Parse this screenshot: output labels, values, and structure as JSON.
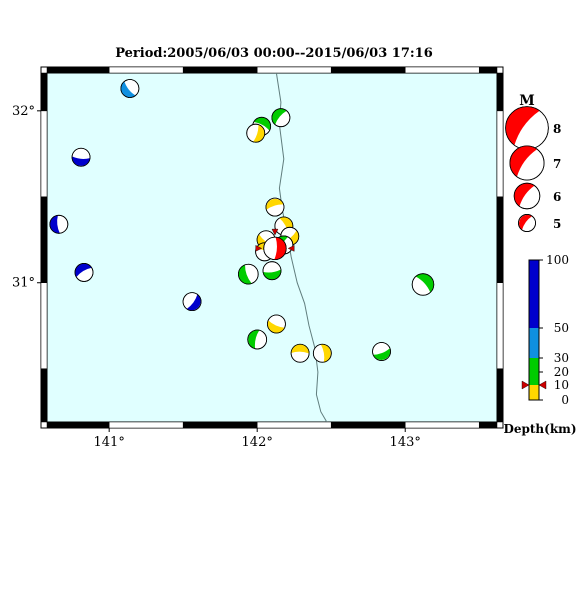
{
  "title": "Period:2005/06/03 00:00--2015/06/03 17:16",
  "map": {
    "lon_range": [
      140.58,
      143.62
    ],
    "lat_range": [
      30.19,
      32.22
    ],
    "background_color": "#e0ffff",
    "lon_ticks": [
      {
        "value": 141,
        "label": "141°"
      },
      {
        "value": 142,
        "label": "142°"
      },
      {
        "value": 143,
        "label": "143°"
      }
    ],
    "lat_ticks": [
      {
        "value": 32,
        "label": "32°"
      },
      {
        "value": 31,
        "label": "31°"
      }
    ],
    "trench_line": [
      [
        142.13,
        32.22
      ],
      [
        142.16,
        32.05
      ],
      [
        142.15,
        31.92
      ],
      [
        142.18,
        31.72
      ],
      [
        142.15,
        31.55
      ],
      [
        142.17,
        31.42
      ],
      [
        142.2,
        31.3
      ],
      [
        142.23,
        31.15
      ],
      [
        142.27,
        31.0
      ],
      [
        142.32,
        30.88
      ],
      [
        142.35,
        30.75
      ],
      [
        142.39,
        30.62
      ],
      [
        142.41,
        30.48
      ],
      [
        142.4,
        30.35
      ],
      [
        142.43,
        30.25
      ],
      [
        142.47,
        30.19
      ]
    ]
  },
  "events": [
    {
      "lon": 141.14,
      "lat": 32.13,
      "depth_color": "#1090e0",
      "mag": 5.0
    },
    {
      "lon": 142.16,
      "lat": 31.96,
      "depth_color": "#00cc00",
      "mag": 5.0
    },
    {
      "lon": 142.03,
      "lat": 31.91,
      "depth_color": "#00cc00",
      "mag": 5.0
    },
    {
      "lon": 141.99,
      "lat": 31.87,
      "depth_color": "#ffd700",
      "mag": 5.0
    },
    {
      "lon": 140.81,
      "lat": 31.73,
      "depth_color": "#0000cc",
      "mag": 5.0
    },
    {
      "lon": 140.66,
      "lat": 31.34,
      "depth_color": "#0000cc",
      "mag": 5.0
    },
    {
      "lon": 142.12,
      "lat": 31.44,
      "depth_color": "#ffd700",
      "mag": 5.0
    },
    {
      "lon": 142.18,
      "lat": 31.33,
      "depth_color": "#ffd700",
      "mag": 5.0
    },
    {
      "lon": 142.22,
      "lat": 31.27,
      "depth_color": "#ffd700",
      "mag": 5.0
    },
    {
      "lon": 142.06,
      "lat": 31.25,
      "depth_color": "#ffd700",
      "mag": 5.0
    },
    {
      "lon": 142.18,
      "lat": 31.22,
      "depth_color": "#00cc00",
      "mag": 5.0
    },
    {
      "lon": 142.05,
      "lat": 31.18,
      "depth_color": "#ffd700",
      "mag": 5.0
    },
    {
      "lon": 142.12,
      "lat": 31.2,
      "depth_color": "#ff0000",
      "mag": 5.5,
      "highlight": true
    },
    {
      "lon": 142.1,
      "lat": 31.07,
      "depth_color": "#00cc00",
      "mag": 5.0
    },
    {
      "lon": 141.94,
      "lat": 31.05,
      "depth_color": "#00cc00",
      "mag": 5.2
    },
    {
      "lon": 140.83,
      "lat": 31.06,
      "depth_color": "#0000cc",
      "mag": 5.0
    },
    {
      "lon": 143.12,
      "lat": 30.99,
      "depth_color": "#00cc00",
      "mag": 5.4
    },
    {
      "lon": 141.56,
      "lat": 30.89,
      "depth_color": "#0000cc",
      "mag": 5.0
    },
    {
      "lon": 142.13,
      "lat": 30.76,
      "depth_color": "#ffd700",
      "mag": 5.0
    },
    {
      "lon": 142.0,
      "lat": 30.67,
      "depth_color": "#00cc00",
      "mag": 5.1
    },
    {
      "lon": 142.29,
      "lat": 30.59,
      "depth_color": "#ffd700",
      "mag": 5.0
    },
    {
      "lon": 142.44,
      "lat": 30.59,
      "depth_color": "#ffd700",
      "mag": 5.0
    },
    {
      "lon": 142.84,
      "lat": 30.6,
      "depth_color": "#00cc00",
      "mag": 5.0
    }
  ],
  "legend": {
    "title": "M",
    "items": [
      {
        "mag": 8,
        "label": "8"
      },
      {
        "mag": 7,
        "label": "7"
      },
      {
        "mag": 6,
        "label": "6"
      },
      {
        "mag": 5,
        "label": "5"
      }
    ],
    "color": "#ff0000"
  },
  "colorbar": {
    "title": "Depth(km)",
    "range": [
      0,
      100
    ],
    "segments": [
      {
        "from": 0,
        "to": 10,
        "color": "#ffd700"
      },
      {
        "from": 10,
        "to": 20,
        "color": "#00cc00"
      },
      {
        "from": 20,
        "to": 30,
        "color": "#00cc00"
      },
      {
        "from": 30,
        "to": 50,
        "color": "#1090e0"
      },
      {
        "from": 50,
        "to": 100,
        "color": "#0000cc"
      }
    ],
    "ticks": [
      {
        "value": 100,
        "label": "100"
      },
      {
        "value": 50,
        "label": "50"
      },
      {
        "value": 30,
        "label": "30"
      },
      {
        "value": 20,
        "label": "20"
      },
      {
        "value": 10,
        "label": "10"
      },
      {
        "value": 0,
        "label": "0"
      }
    ],
    "marker_value": 10
  }
}
